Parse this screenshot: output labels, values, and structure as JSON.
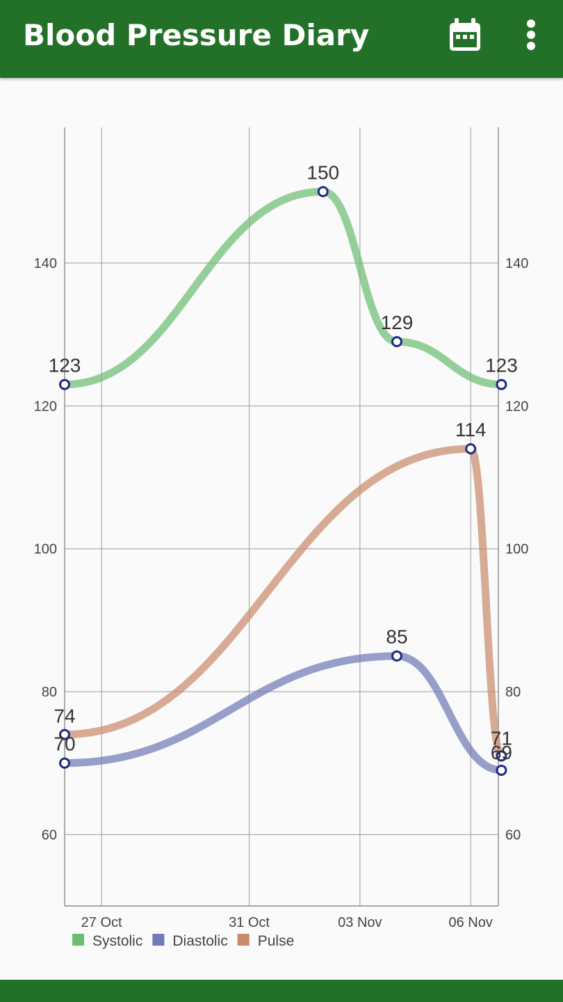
{
  "app": {
    "title": "Blood Pressure Diary",
    "calendar_icon": "calendar-icon",
    "more_icon": "more-vert-icon",
    "brand_color": "#237128"
  },
  "chart_data": {
    "type": "line",
    "x": [
      "26 Oct",
      "02 Nov",
      "04 Nov",
      "06 Nov",
      "06 Nov"
    ],
    "x_ticks": [
      "27 Oct",
      "31 Oct",
      "03 Nov",
      "06 Nov"
    ],
    "ylim": [
      50,
      159
    ],
    "y_ticks": [
      "60",
      "80",
      "100",
      "120",
      "140"
    ],
    "grid": true,
    "legend_position": "bottom-left",
    "series": [
      {
        "name": "Systolic",
        "color": "#6cbd72",
        "marker": "points",
        "labels": [
          "123",
          "150",
          "129",
          "123"
        ]
      },
      {
        "name": "Diastolic",
        "color": "#6f7ab6",
        "marker": "points",
        "labels": [
          "70",
          "85",
          "69"
        ]
      },
      {
        "name": "Pulse",
        "color": "#c98a6c",
        "marker": "points",
        "labels": [
          "74",
          "114",
          "71"
        ]
      }
    ]
  }
}
